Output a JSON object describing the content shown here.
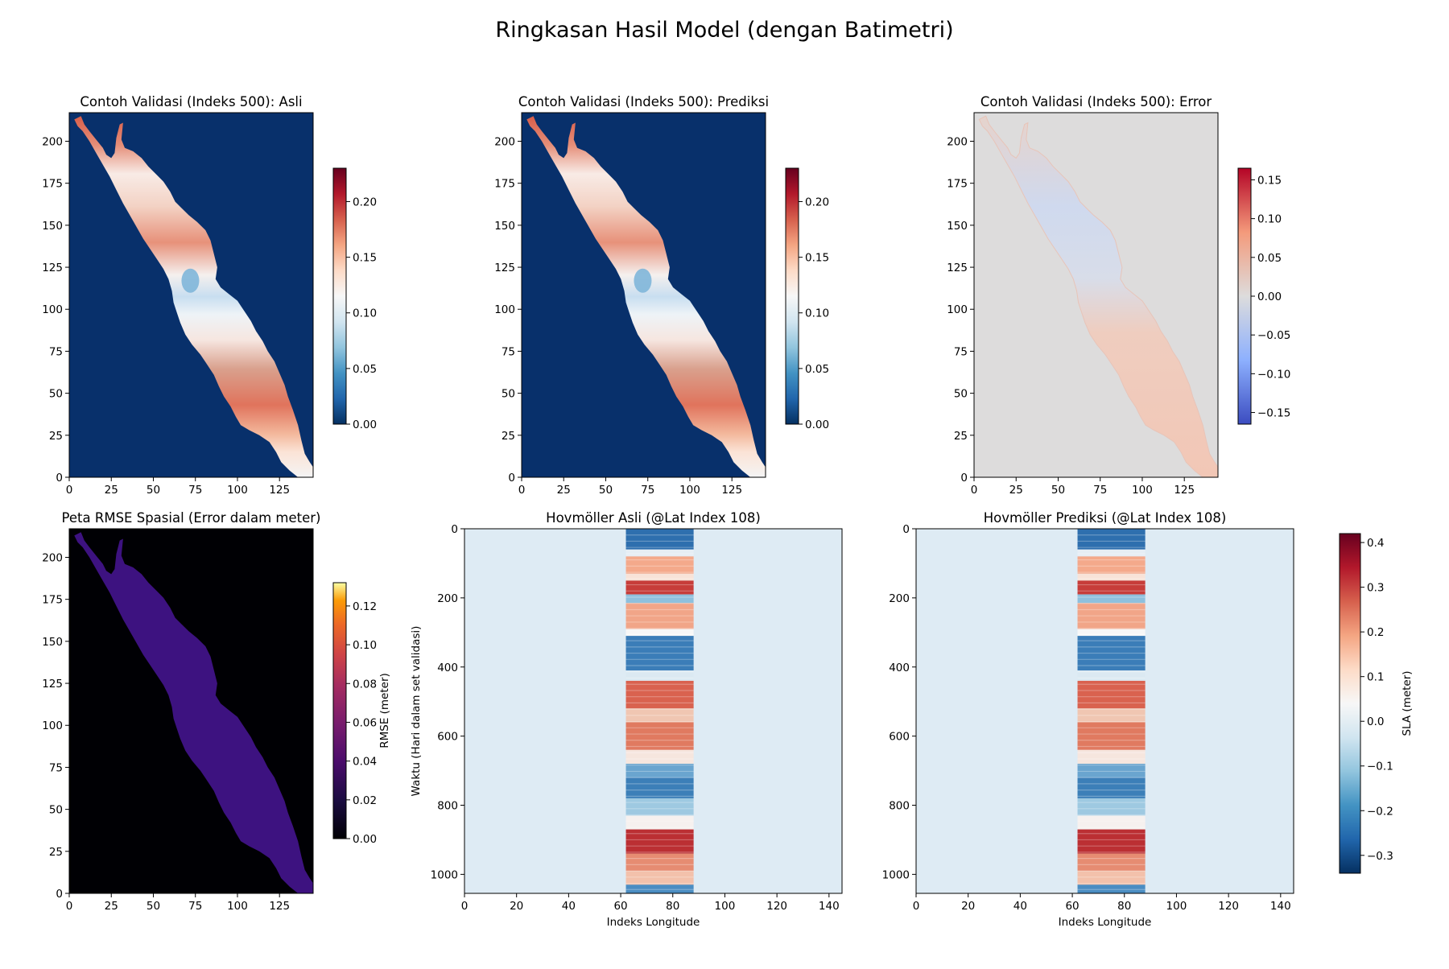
{
  "title": "Ringkasan Hasil Model (dengan Batimetri)",
  "chart_data": [
    {
      "type": "heatmap",
      "title": "Contoh Validasi (Indeks 500): Asli",
      "xlim": [
        0,
        145
      ],
      "ylim": [
        0,
        217
      ],
      "x_ticks": [
        0,
        25,
        50,
        75,
        100,
        125
      ],
      "y_ticks": [
        0,
        25,
        50,
        75,
        100,
        125,
        150,
        175,
        200
      ],
      "colormap": "RdBu_r",
      "colorbar": {
        "min": 0.0,
        "max": 0.23,
        "ticks": [
          "0.00",
          "0.05",
          "0.10",
          "0.15",
          "0.20"
        ],
        "label": ""
      },
      "background_value": 0.0
    },
    {
      "type": "heatmap",
      "title": "Contoh Validasi (Indeks 500): Prediksi",
      "xlim": [
        0,
        145
      ],
      "ylim": [
        0,
        217
      ],
      "x_ticks": [
        0,
        25,
        50,
        75,
        100,
        125
      ],
      "y_ticks": [
        0,
        25,
        50,
        75,
        100,
        125,
        150,
        175,
        200
      ],
      "colormap": "RdBu_r",
      "colorbar": {
        "min": 0.0,
        "max": 0.23,
        "ticks": [
          "0.00",
          "0.05",
          "0.10",
          "0.15",
          "0.20"
        ],
        "label": ""
      },
      "background_value": 0.0
    },
    {
      "type": "heatmap",
      "title": "Contoh Validasi (Indeks 500): Error",
      "xlim": [
        0,
        145
      ],
      "ylim": [
        0,
        217
      ],
      "x_ticks": [
        0,
        25,
        50,
        75,
        100,
        125
      ],
      "y_ticks": [
        0,
        25,
        50,
        75,
        100,
        125,
        150,
        175,
        200
      ],
      "colormap": "coolwarm",
      "colorbar": {
        "min": -0.165,
        "max": 0.165,
        "ticks": [
          "0.15",
          "0.10",
          "0.05",
          "0.00",
          "−0.05",
          "−0.10",
          "−0.15"
        ],
        "tick_values": [
          0.15,
          0.1,
          0.05,
          0.0,
          -0.05,
          -0.1,
          -0.15
        ],
        "label": ""
      },
      "background_value": 0.0
    },
    {
      "type": "heatmap",
      "title": "Peta RMSE Spasial (Error dalam meter)",
      "xlim": [
        0,
        145
      ],
      "ylim": [
        0,
        217
      ],
      "x_ticks": [
        0,
        25,
        50,
        75,
        100,
        125
      ],
      "y_ticks": [
        0,
        25,
        50,
        75,
        100,
        125,
        150,
        175,
        200
      ],
      "colormap": "plasma",
      "colorbar": {
        "min": 0.0,
        "max": 0.132,
        "ticks": [
          "0.00",
          "0.02",
          "0.04",
          "0.06",
          "0.08",
          "0.10",
          "0.12"
        ],
        "label": "RMSE (meter)"
      },
      "background_value": 0.0,
      "basin_value": 0.01
    },
    {
      "type": "heatmap",
      "title": "Hovmöller Asli (@Lat Index 108)",
      "xlim": [
        0,
        145
      ],
      "ylim": [
        1055,
        0
      ],
      "x_ticks": [
        0,
        20,
        40,
        60,
        80,
        100,
        120,
        140
      ],
      "y_ticks": [
        0,
        200,
        400,
        600,
        800,
        1000
      ],
      "xlabel": "Indeks Longitude",
      "ylabel": "Waktu (Hari dalam set validasi)",
      "active_lon_range": [
        62,
        88
      ],
      "colormap": "RdBu_r"
    },
    {
      "type": "heatmap",
      "title": "Hovmöller Prediksi (@Lat Index 108)",
      "xlim": [
        0,
        145
      ],
      "ylim": [
        1055,
        0
      ],
      "x_ticks": [
        0,
        20,
        40,
        60,
        80,
        100,
        120,
        140
      ],
      "y_ticks": [
        0,
        200,
        400,
        600,
        800,
        1000
      ],
      "xlabel": "Indeks Longitude",
      "ylabel": "",
      "active_lon_range": [
        62,
        88
      ],
      "colormap": "RdBu_r",
      "colorbar": {
        "min": -0.34,
        "max": 0.42,
        "ticks": [
          "0.4",
          "0.3",
          "0.2",
          "0.1",
          "0.0",
          "−0.1",
          "−0.2",
          "−0.3"
        ],
        "tick_values": [
          0.4,
          0.3,
          0.2,
          0.1,
          0.0,
          -0.1,
          -0.2,
          -0.3
        ],
        "label": "SLA (meter)"
      }
    }
  ]
}
